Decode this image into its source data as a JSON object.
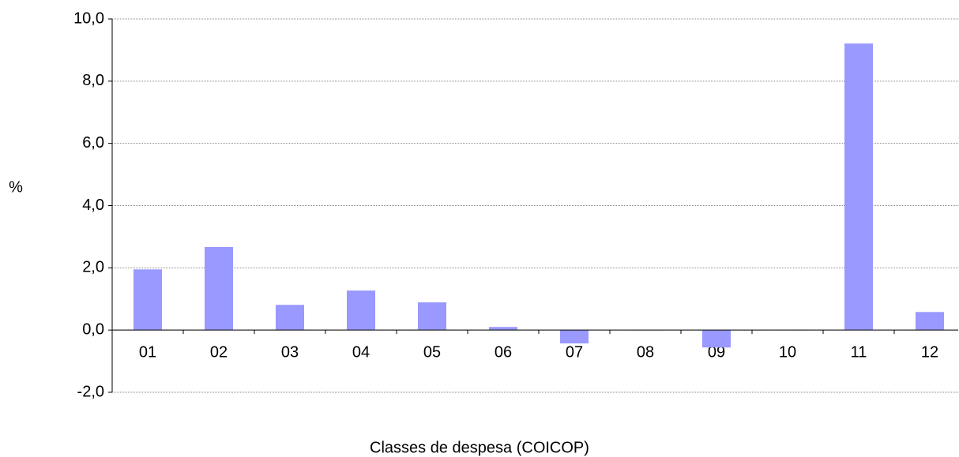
{
  "chart_data": {
    "type": "bar",
    "x_label": "Classes de despesa (COICOP)",
    "y_label": "%",
    "categories": [
      "01",
      "02",
      "03",
      "04",
      "05",
      "06",
      "07",
      "08",
      "09",
      "10",
      "11",
      "12"
    ],
    "values": [
      1.95,
      2.67,
      0.81,
      1.27,
      0.89,
      0.1,
      -0.43,
      -0.01,
      -0.56,
      0,
      9.21,
      0.58
    ],
    "color": "#9999ff",
    "ylim": [
      -2,
      10
    ],
    "yticks": [
      {
        "value": -2,
        "label": "-2,0"
      },
      {
        "value": 0,
        "label": "0,0"
      },
      {
        "value": 2,
        "label": "2,0"
      },
      {
        "value": 4,
        "label": "4,0"
      },
      {
        "value": 6,
        "label": "6,0"
      },
      {
        "value": 8,
        "label": "8,0"
      },
      {
        "value": 10,
        "label": "10,0"
      }
    ],
    "grid": true
  }
}
